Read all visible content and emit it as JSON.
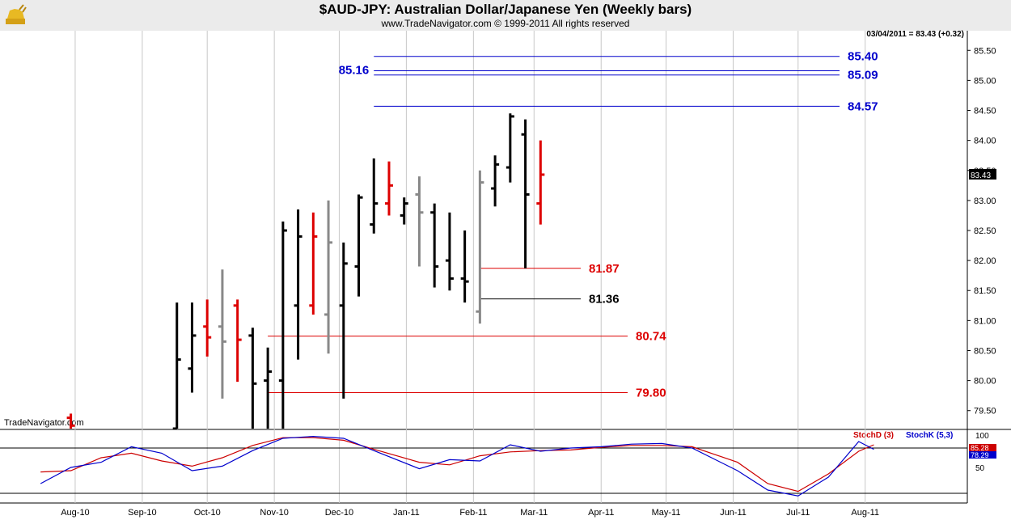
{
  "header": {
    "title": "$AUD-JPY:  Australian Dollar/Japanese Yen  (Weekly bars)",
    "copyright": "www.TradeNavigator.com © 1999-2011 All rights reserved",
    "last_price": "03/04/2011 = 83.43 (+0.32)",
    "watermark": "TradeNavigator.com",
    "logo_icon": "golden-bull-logo"
  },
  "colors": {
    "up_bar": "#000000",
    "down_bar": "#dd0000",
    "neutral_bar": "#888888",
    "level_blue": "#0000cc",
    "level_red": "#dd0000",
    "stoch_d": "#cc0000",
    "stoch_k": "#0000cc"
  },
  "chart_data": [
    {
      "type": "ohlc",
      "title": "$AUD-JPY:  Australian Dollar/Japanese Yen  (Weekly bars)",
      "ylim": [
        79.2,
        85.8
      ],
      "y_ticks": [
        "79.50",
        "80.00",
        "80.50",
        "81.00",
        "81.50",
        "82.00",
        "82.50",
        "83.00",
        "83.50",
        "84.00",
        "84.50",
        "85.00",
        "85.50"
      ],
      "x_ticks": [
        "Aug-10",
        "Sep-10",
        "Oct-10",
        "Nov-10",
        "Dec-10",
        "Jan-11",
        "Feb-11",
        "Mar-11",
        "Apr-11",
        "May-11",
        "Jun-11",
        "Jul-11",
        "Aug-11"
      ],
      "x_tick_dates": [
        "2010-08-01",
        "2010-09-01",
        "2010-10-01",
        "2010-11-01",
        "2010-12-01",
        "2011-01-01",
        "2011-02-01",
        "2011-03-01",
        "2011-04-01",
        "2011-05-01",
        "2011-06-01",
        "2011-07-01",
        "2011-08-01"
      ],
      "last_price_tag": "83.43",
      "bars": [
        {
          "date": "2010-07-30",
          "open": 79.38,
          "high": 79.45,
          "low": 79.2,
          "close": 79.25,
          "color": "down"
        },
        {
          "date": "2010-09-17",
          "open": 79.2,
          "high": 81.3,
          "low": 79.2,
          "close": 80.35,
          "color": "up"
        },
        {
          "date": "2010-09-24",
          "open": 80.2,
          "high": 81.3,
          "low": 79.8,
          "close": 80.75,
          "color": "up"
        },
        {
          "date": "2010-10-01",
          "open": 80.9,
          "high": 81.35,
          "low": 80.4,
          "close": 80.72,
          "color": "down"
        },
        {
          "date": "2010-10-08",
          "open": 80.9,
          "high": 81.85,
          "low": 79.7,
          "close": 80.65,
          "color": "neutral"
        },
        {
          "date": "2010-10-15",
          "open": 81.25,
          "high": 81.35,
          "low": 79.98,
          "close": 80.68,
          "color": "down"
        },
        {
          "date": "2010-10-22",
          "open": 80.75,
          "high": 80.88,
          "low": 79.2,
          "close": 79.95,
          "color": "up"
        },
        {
          "date": "2010-10-29",
          "open": 80.0,
          "high": 80.55,
          "low": 79.2,
          "close": 80.15,
          "color": "up"
        },
        {
          "date": "2010-11-05",
          "open": 80.0,
          "high": 82.65,
          "low": 79.2,
          "close": 82.5,
          "color": "up"
        },
        {
          "date": "2010-11-12",
          "open": 81.25,
          "high": 82.85,
          "low": 80.35,
          "close": 82.4,
          "color": "up"
        },
        {
          "date": "2010-11-19",
          "open": 81.25,
          "high": 82.8,
          "low": 81.1,
          "close": 82.4,
          "color": "down"
        },
        {
          "date": "2010-11-26",
          "open": 81.1,
          "high": 83.0,
          "low": 80.45,
          "close": 82.3,
          "color": "neutral"
        },
        {
          "date": "2010-12-03",
          "open": 81.25,
          "high": 82.3,
          "low": 79.7,
          "close": 81.95,
          "color": "up"
        },
        {
          "date": "2010-12-10",
          "open": 81.9,
          "high": 83.1,
          "low": 81.4,
          "close": 83.05,
          "color": "up"
        },
        {
          "date": "2010-12-17",
          "open": 82.6,
          "high": 83.7,
          "low": 82.45,
          "close": 82.95,
          "color": "up"
        },
        {
          "date": "2010-12-24",
          "open": 82.95,
          "high": 83.65,
          "low": 82.75,
          "close": 83.25,
          "color": "down"
        },
        {
          "date": "2010-12-31",
          "open": 82.75,
          "high": 83.05,
          "low": 82.6,
          "close": 82.95,
          "color": "up"
        },
        {
          "date": "2011-01-07",
          "open": 83.1,
          "high": 83.4,
          "low": 81.9,
          "close": 82.8,
          "color": "neutral"
        },
        {
          "date": "2011-01-14",
          "open": 82.8,
          "high": 82.95,
          "low": 81.55,
          "close": 81.9,
          "color": "up"
        },
        {
          "date": "2011-01-21",
          "open": 82.0,
          "high": 82.8,
          "low": 81.5,
          "close": 81.7,
          "color": "up"
        },
        {
          "date": "2011-01-28",
          "open": 81.7,
          "high": 82.5,
          "low": 81.3,
          "close": 81.65,
          "color": "up"
        },
        {
          "date": "2011-02-04",
          "open": 81.15,
          "high": 83.5,
          "low": 80.95,
          "close": 83.3,
          "color": "neutral"
        },
        {
          "date": "2011-02-11",
          "open": 83.2,
          "high": 83.75,
          "low": 82.9,
          "close": 83.6,
          "color": "up"
        },
        {
          "date": "2011-02-18",
          "open": 83.55,
          "high": 84.45,
          "low": 83.3,
          "close": 84.4,
          "color": "up"
        },
        {
          "date": "2011-02-25",
          "open": 84.1,
          "high": 84.35,
          "low": 81.87,
          "close": 83.1,
          "color": "up"
        },
        {
          "date": "2011-03-04",
          "open": 82.95,
          "high": 84.0,
          "low": 82.6,
          "close": 83.43,
          "color": "down"
        }
      ],
      "levels": [
        {
          "value": 85.4,
          "label": "85.40",
          "color": "blue",
          "start": "2010-12-17",
          "label_side": "right"
        },
        {
          "value": 85.16,
          "label": "85.16",
          "color": "blue",
          "start": "2010-12-17",
          "label_side": "left"
        },
        {
          "value": 85.09,
          "label": "85.09",
          "color": "blue",
          "start": "2010-12-17",
          "label_side": "right"
        },
        {
          "value": 84.57,
          "label": "84.57",
          "color": "blue",
          "start": "2010-12-17",
          "label_side": "right"
        },
        {
          "value": 81.87,
          "label": "81.87",
          "color": "red",
          "start": "2011-02-04",
          "label_side": "right"
        },
        {
          "value": 81.36,
          "label": "81.36",
          "color": "black",
          "start": "2011-02-04",
          "label_side": "right"
        },
        {
          "value": 80.74,
          "label": "80.74",
          "color": "red",
          "start": "2010-10-29",
          "label_side": "right"
        },
        {
          "value": 79.8,
          "label": "79.80",
          "color": "red",
          "start": "2010-10-29",
          "label_side": "right"
        }
      ]
    },
    {
      "type": "line",
      "title": "Stochastic",
      "ylim": [
        0,
        100
      ],
      "y_ticks": [
        "50",
        "100"
      ],
      "reference_line": 80,
      "series": [
        {
          "name": "StochD (3)",
          "color": "#cc0000",
          "last_tag": "85.28",
          "points": [
            [
              "2010-07-16",
              43
            ],
            [
              "2010-07-30",
              45
            ],
            [
              "2010-08-13",
              65
            ],
            [
              "2010-08-27",
              72
            ],
            [
              "2010-09-10",
              60
            ],
            [
              "2010-09-24",
              52
            ],
            [
              "2010-10-08",
              65
            ],
            [
              "2010-10-22",
              84
            ],
            [
              "2010-11-05",
              96
            ],
            [
              "2010-11-19",
              96
            ],
            [
              "2010-12-03",
              92
            ],
            [
              "2010-12-17",
              78
            ],
            [
              "2011-01-07",
              58
            ],
            [
              "2011-01-21",
              54
            ],
            [
              "2011-02-04",
              68
            ],
            [
              "2011-02-18",
              74
            ],
            [
              "2011-03-04",
              76
            ],
            [
              "2011-03-18",
              77
            ],
            [
              "2011-04-01",
              81
            ],
            [
              "2011-04-15",
              84
            ],
            [
              "2011-04-29",
              84
            ],
            [
              "2011-05-13",
              82
            ],
            [
              "2011-06-03",
              58
            ],
            [
              "2011-06-17",
              25
            ],
            [
              "2011-07-01",
              13
            ],
            [
              "2011-07-15",
              40
            ],
            [
              "2011-07-29",
              75
            ],
            [
              "2011-08-05",
              85
            ]
          ]
        },
        {
          "name": "StochK (5,3)",
          "color": "#0000cc",
          "last_tag": "78.29",
          "points": [
            [
              "2010-07-16",
              25
            ],
            [
              "2010-07-30",
              50
            ],
            [
              "2010-08-13",
              58
            ],
            [
              "2010-08-27",
              82
            ],
            [
              "2010-09-10",
              72
            ],
            [
              "2010-09-24",
              45
            ],
            [
              "2010-10-08",
              52
            ],
            [
              "2010-10-22",
              76
            ],
            [
              "2010-11-05",
              95
            ],
            [
              "2010-11-19",
              98
            ],
            [
              "2010-12-03",
              95
            ],
            [
              "2010-12-17",
              76
            ],
            [
              "2011-01-07",
              48
            ],
            [
              "2011-01-21",
              62
            ],
            [
              "2011-02-04",
              60
            ],
            [
              "2011-02-18",
              85
            ],
            [
              "2011-03-04",
              75
            ],
            [
              "2011-03-18",
              80
            ],
            [
              "2011-04-01",
              82
            ],
            [
              "2011-04-15",
              86
            ],
            [
              "2011-04-29",
              87
            ],
            [
              "2011-05-13",
              80
            ],
            [
              "2011-06-03",
              45
            ],
            [
              "2011-06-17",
              15
            ],
            [
              "2011-07-01",
              6
            ],
            [
              "2011-07-15",
              35
            ],
            [
              "2011-07-29",
              90
            ],
            [
              "2011-08-05",
              78
            ]
          ]
        }
      ]
    }
  ]
}
